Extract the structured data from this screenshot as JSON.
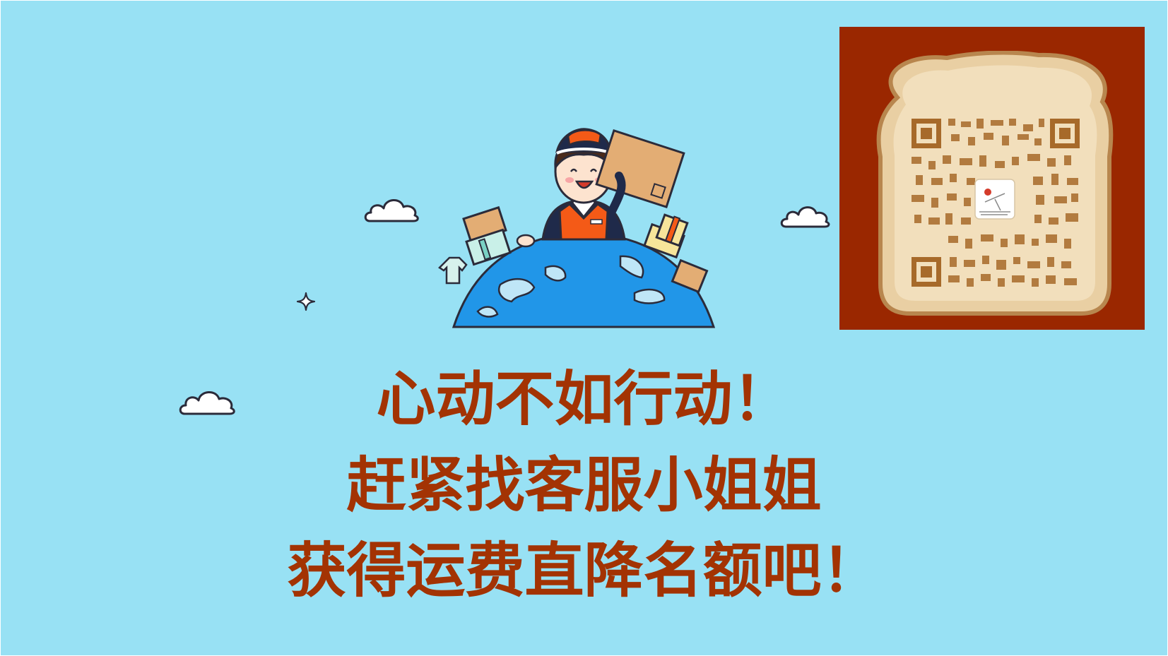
{
  "headline": {
    "line1": "心动不如行动！",
    "line2": "赶紧找客服小姐姐",
    "line3": "获得运费直降名额吧！"
  },
  "icons": [
    "cloud-icon",
    "sparkle-icon",
    "delivery-courier-globe-illustration",
    "qr-code",
    "toast-bread-icon"
  ],
  "colors": {
    "background": "#98e1f4",
    "accent": "#a33303",
    "qr_panel": "#9a2700",
    "bread_crumb": "#e9cfa3"
  }
}
